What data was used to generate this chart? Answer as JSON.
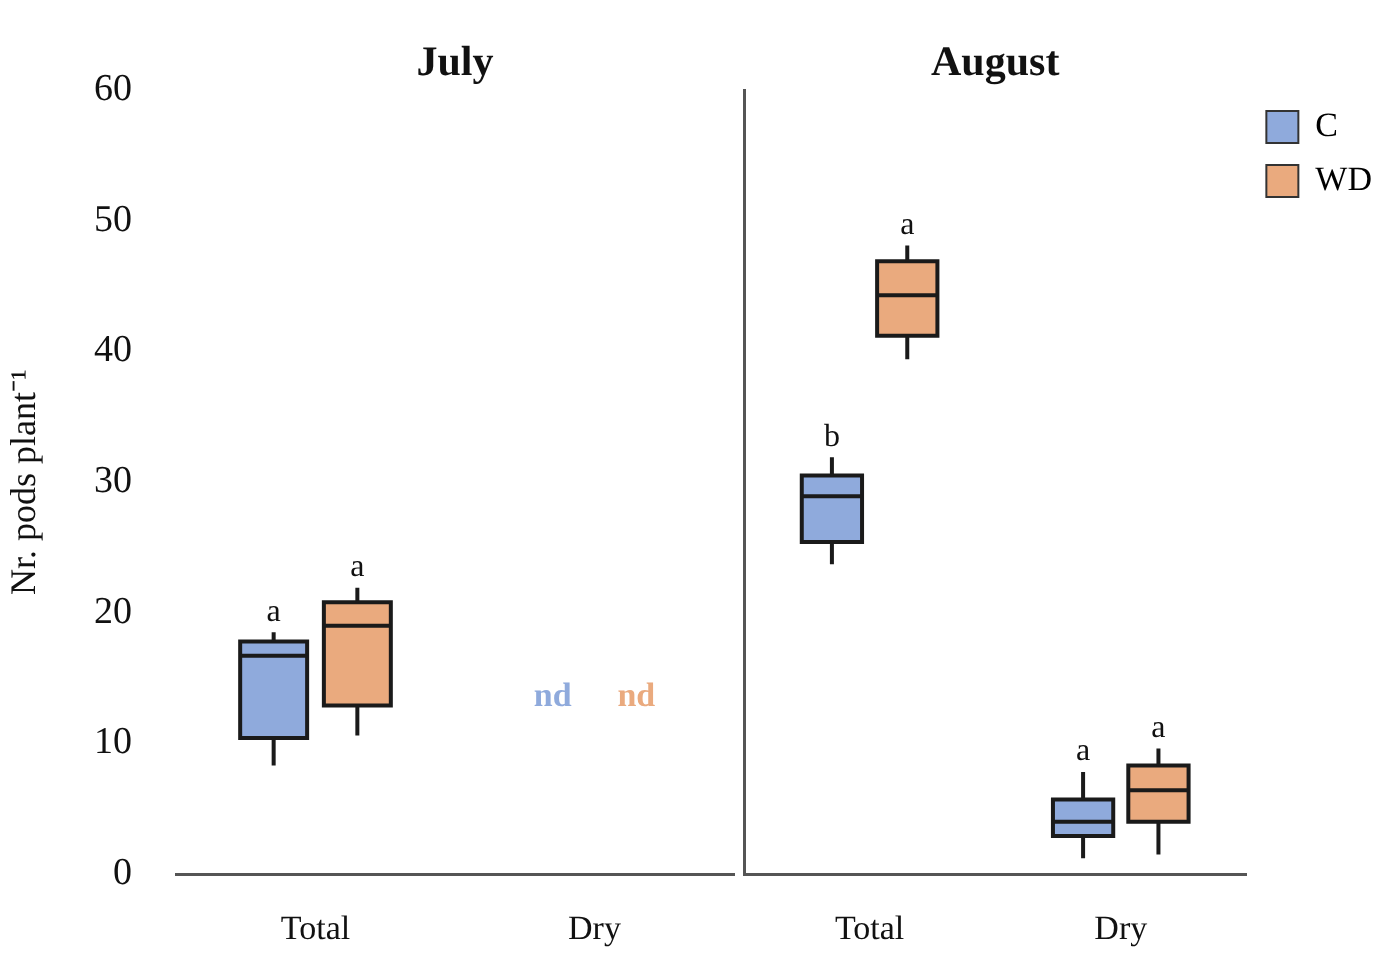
{
  "chart_data": [
    {
      "type": "box",
      "title": "July",
      "ylabel": "Nr. pods plant⁻¹",
      "categories": [
        "Total",
        "Dry"
      ],
      "series": [
        {
          "color": "#8faadc",
          "boxes": [
            {
              "low": 8.3,
              "q1": 10.4,
              "median": 16.7,
              "q3": 17.8,
              "high": 18.5
            },
            null
          ]
        },
        {
          "color": "#eaaa7e",
          "boxes": [
            {
              "low": 10.6,
              "q1": 12.9,
              "median": 19.0,
              "q3": 20.8,
              "high": 21.9
            },
            null
          ]
        }
      ],
      "ylim": [
        0,
        60
      ],
      "yticks": [
        0,
        10,
        20,
        30,
        40,
        50,
        60
      ],
      "grid": false,
      "legend": false,
      "annotations": [
        "a",
        "a",
        "nd",
        "nd"
      ]
    },
    {
      "type": "box",
      "title": "August",
      "categories": [
        "Total",
        "Dry"
      ],
      "series": [
        {
          "name": "C",
          "color": "#8faadc",
          "boxes": [
            {
              "low": 23.7,
              "q1": 25.4,
              "median": 28.9,
              "q3": 30.5,
              "high": 31.9
            },
            {
              "low": 1.2,
              "q1": 2.9,
              "median": 4.0,
              "q3": 5.7,
              "high": 7.8
            }
          ]
        },
        {
          "name": "WD",
          "color": "#eaaa7e",
          "boxes": [
            {
              "low": 39.4,
              "q1": 41.2,
              "median": 44.3,
              "q3": 46.9,
              "high": 48.1
            },
            {
              "low": 1.5,
              "q1": 4.0,
              "median": 6.4,
              "q3": 8.3,
              "high": 9.6
            }
          ]
        }
      ],
      "ylim": [
        0,
        60
      ],
      "yticks": [
        0,
        10,
        20,
        30,
        40,
        50,
        60
      ],
      "grid": false,
      "legend": "top right",
      "tick_labels": "x",
      "annotations": [
        "b",
        "a",
        "a",
        "a"
      ]
    }
  ]
}
